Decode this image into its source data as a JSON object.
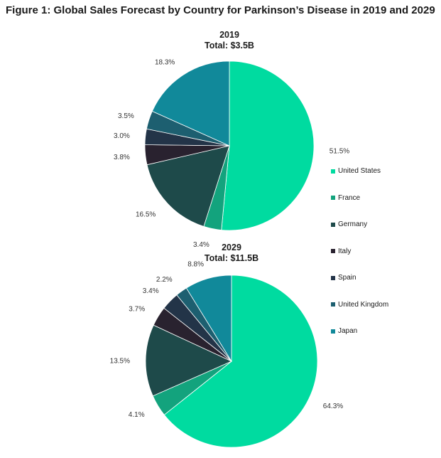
{
  "figure_title": "Figure 1: Global Sales Forecast by Country for Parkinson’s Disease in 2019 and 2029",
  "legend": [
    {
      "label": "United States",
      "color": "#00DBA0"
    },
    {
      "label": "France",
      "color": "#13A37D"
    },
    {
      "label": "Germany",
      "color": "#1E4A4A"
    },
    {
      "label": "Italy",
      "color": "#29222F"
    },
    {
      "label": "Spain",
      "color": "#233448"
    },
    {
      "label": "United Kingdom",
      "color": "#1D5F70"
    },
    {
      "label": "Japan",
      "color": "#11899A"
    }
  ],
  "chart_data": [
    {
      "type": "pie",
      "title": "2019",
      "subtitle": "Total: $3.5B",
      "categories": [
        "United States",
        "France",
        "Germany",
        "Italy",
        "Spain",
        "United Kingdom",
        "Japan"
      ],
      "values": [
        51.5,
        3.4,
        16.5,
        3.8,
        3.0,
        3.5,
        18.3
      ],
      "labels": [
        "51.5%",
        "3.4%",
        "16.5%",
        "3.8%",
        "3.0%",
        "3.5%",
        "18.3%"
      ]
    },
    {
      "type": "pie",
      "title": "2029",
      "subtitle": "Total: $11.5B",
      "categories": [
        "United States",
        "France",
        "Germany",
        "Italy",
        "Spain",
        "United Kingdom",
        "Japan"
      ],
      "values": [
        64.3,
        4.1,
        13.5,
        3.7,
        3.4,
        2.2,
        8.8
      ],
      "labels": [
        "64.3%",
        "4.1%",
        "13.5%",
        "3.7%",
        "3.4%",
        "2.2%",
        "8.8%"
      ]
    }
  ]
}
